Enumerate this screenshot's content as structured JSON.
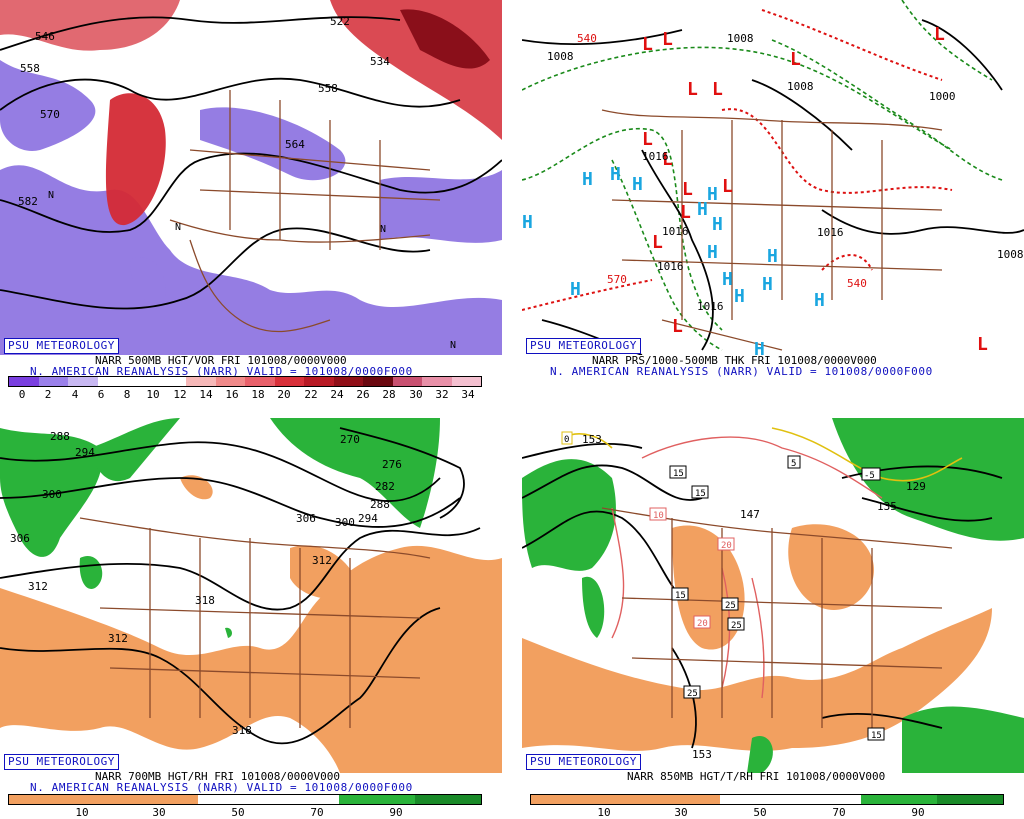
{
  "badge_text": "PSU METEOROLOGY",
  "panels": {
    "p1": {
      "title": "NARR 500MB HGT/VOR FRI 101008/0000V000",
      "subtitle": "N. AMERICAN REANALYSIS (NARR) VALID = 101008/0000F000",
      "colorbar_ticks": [
        "0",
        "2",
        "4",
        "6",
        "8",
        "10",
        "12",
        "14",
        "16",
        "18",
        "20",
        "22",
        "24",
        "26",
        "28",
        "30",
        "32",
        "34"
      ],
      "contour_labels": [
        "546",
        "558",
        "570",
        "582",
        "522",
        "534",
        "558",
        "564"
      ],
      "symbol_label": "N"
    },
    "p2": {
      "title": "NARR PRS/1000-500MB THK FRI 101008/0000V000",
      "subtitle": "N. AMERICAN REANALYSIS (NARR) VALID = 101008/0000F000",
      "contour_labels": [
        "540",
        "1008",
        "1008",
        "1008",
        "1016",
        "1016",
        "1016",
        "1016",
        "1016",
        "570",
        "540",
        "1000",
        "1008"
      ],
      "high_symbol": "H",
      "low_symbol": "L"
    },
    "p3": {
      "title": "NARR 700MB HGT/RH FRI 101008/0000V000",
      "subtitle": "N. AMERICAN REANALYSIS (NARR) VALID = 101008/0000F000",
      "colorbar_ticks": [
        "10",
        "30",
        "50",
        "70",
        "90"
      ],
      "contour_labels": [
        "288",
        "294",
        "300",
        "306",
        "312",
        "312",
        "318",
        "318",
        "270",
        "276",
        "282",
        "288",
        "294",
        "300",
        "306",
        "312"
      ]
    },
    "p4": {
      "title": "NARR 850MB HGT/T/RH FRI 101008/0000V000",
      "colorbar_ticks": [
        "10",
        "30",
        "50",
        "70",
        "90"
      ],
      "contour_labels": [
        "153",
        "147",
        "153",
        "135",
        "129"
      ],
      "temp_labels": [
        "0",
        "5",
        "10",
        "15",
        "15",
        "20",
        "20",
        "25",
        "25",
        "25",
        "15",
        "15",
        "-5"
      ]
    }
  },
  "colors": {
    "label_blue": "#1010c0",
    "vort_purple": "#8a6fe0",
    "vort_red": "#d42a35",
    "rh_orange": "#f2a060",
    "rh_green": "#2ab33a",
    "high_cyan": "#1aa6e0",
    "low_red": "#e01010",
    "border_brown": "#8b4a2b",
    "thickness_green": "#1a8a1a",
    "thickness_red": "#dd1111"
  }
}
